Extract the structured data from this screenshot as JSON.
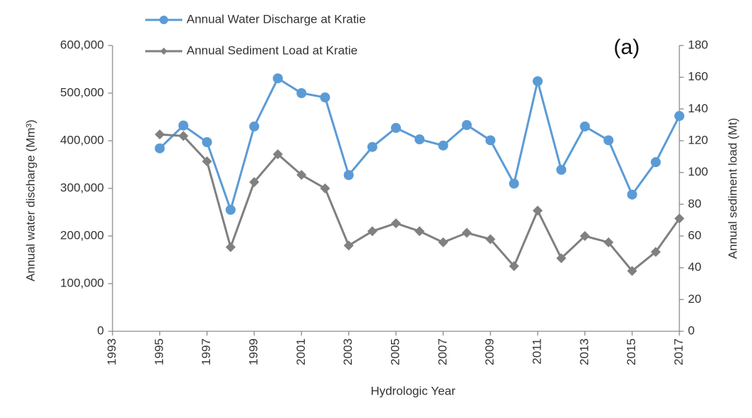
{
  "chart_data": {
    "type": "line",
    "annotation": "(a)",
    "x_label": "Hydrologic Year",
    "y_label": "Annual water discharge (Mm³)",
    "y2_label": "Annual sediment load (Mt)",
    "x": [
      1995,
      1996,
      1997,
      1998,
      1999,
      2000,
      2001,
      2002,
      2003,
      2004,
      2005,
      2006,
      2007,
      2008,
      2009,
      2010,
      2011,
      2012,
      2013,
      2014,
      2015,
      2016,
      2017
    ],
    "series": [
      {
        "name": "Annual Water Discharge at Kratie",
        "color": "#5b9bd5",
        "marker": "circle",
        "values": [
          384000,
          432000,
          397000,
          255000,
          430000,
          531000,
          500000,
          491000,
          328000,
          387000,
          427000,
          403000,
          390000,
          433000,
          401000,
          310000,
          525000,
          339000,
          430000,
          401000,
          287000,
          355000,
          452000
        ]
      },
      {
        "name": "Annual Sediment Load at Kratie",
        "color": "#808080",
        "marker": "diamond",
        "axis": "y2",
        "values": [
          124,
          123,
          107,
          53,
          94,
          111.5,
          98.5,
          90,
          54,
          63,
          68,
          63,
          56,
          62,
          58,
          41,
          76,
          46,
          60,
          56,
          38,
          50,
          71
        ]
      }
    ],
    "xlim": [
      1993,
      2017
    ],
    "xticks": [
      1993,
      1995,
      1997,
      1999,
      2001,
      2003,
      2005,
      2007,
      2009,
      2011,
      2013,
      2015,
      2017
    ],
    "ylim": [
      0,
      600000
    ],
    "yticks": [
      0,
      {
        "value": 100000,
        "label": "100,000"
      },
      {
        "value": 200000,
        "label": "200,000"
      },
      {
        "value": 300000,
        "label": "300,000"
      },
      {
        "value": 400000,
        "label": "400,000"
      },
      {
        "value": 500000,
        "label": "500,000"
      },
      {
        "value": 600000,
        "label": "600,000"
      }
    ],
    "y2lim": [
      0,
      180
    ],
    "y2ticks": [
      0,
      20,
      40,
      60,
      80,
      100,
      120,
      140,
      160,
      180
    ],
    "grid": false,
    "legend": "top-left"
  }
}
